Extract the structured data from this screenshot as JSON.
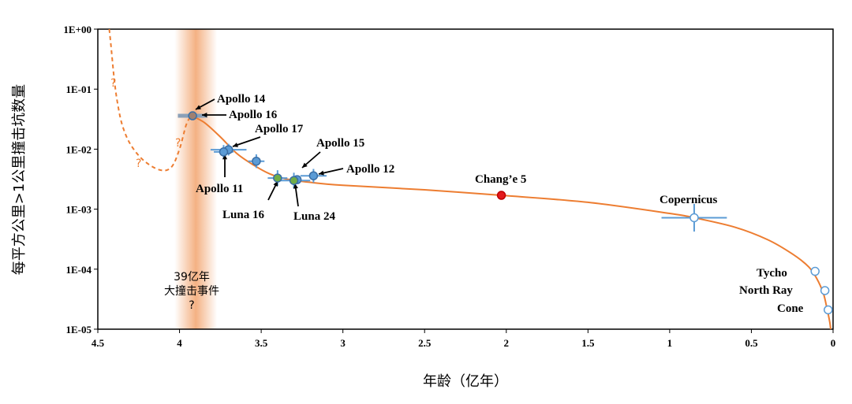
{
  "chart_data": {
    "type": "scatter",
    "title": "",
    "xlabel": "年龄（亿年）",
    "ylabel": "每平方公里>1公里撞击坑数量",
    "x_reversed": true,
    "x_range": [
      4.5,
      0
    ],
    "y_scale": "log",
    "y_range": [
      1e-05,
      1
    ],
    "x_ticks": [
      "4.5",
      "4",
      "3.5",
      "3",
      "2.5",
      "2",
      "1.5",
      "1",
      "0.5",
      "0"
    ],
    "y_ticks": [
      "1E+00",
      "1E-01",
      "1E-02",
      "1E-03",
      "1E-04",
      "1E-05"
    ],
    "grid": false,
    "colors": {
      "curve": "#ed7d31",
      "errorbar": "#5b9bd5",
      "band": "#f4b183"
    },
    "event_band": {
      "x_center": 3.9,
      "label_lines": [
        "39亿年",
        "大撞击事件",
        "?"
      ]
    },
    "curve_question_marks": [
      "?",
      "?",
      "?"
    ],
    "points": [
      {
        "label": "Apollo 14",
        "x": 3.92,
        "y": 0.036,
        "color": "#a08070"
      },
      {
        "label": "Apollo 16",
        "x": 3.92,
        "y": 0.036,
        "color": "#a08070"
      },
      {
        "label": "Apollo 17",
        "x": 3.7,
        "y": 0.0098,
        "color": "#5b9bd5"
      },
      {
        "label": "Apollo 11",
        "x": 3.73,
        "y": 0.009,
        "color": "#5b9bd5"
      },
      {
        "label": "Apollo 15",
        "x": 3.28,
        "y": 0.0031,
        "color": "#5b9bd5"
      },
      {
        "label": "Apollo 12",
        "x": 3.18,
        "y": 0.0036,
        "color": "#5b9bd5"
      },
      {
        "label": "",
        "x": 3.53,
        "y": 0.0063,
        "color": "#5b9bd5"
      },
      {
        "label": "Luna 16",
        "x": 3.4,
        "y": 0.0033,
        "color": "#70ad47"
      },
      {
        "label": "Luna 24",
        "x": 3.3,
        "y": 0.003,
        "color": "#70ad47"
      },
      {
        "label": "Chang’e 5",
        "x": 2.03,
        "y": 0.0017,
        "color": "#e31a1c"
      },
      {
        "label": "Copernicus",
        "x": 0.85,
        "y": 0.00072,
        "color": "#ffffff"
      },
      {
        "label": "Tycho",
        "x": 0.11,
        "y": 9.2e-05,
        "color": "#ffffff"
      },
      {
        "label": "North Ray",
        "x": 0.05,
        "y": 4.4e-05,
        "color": "#ffffff"
      },
      {
        "label": "Cone",
        "x": 0.03,
        "y": 2.1e-05,
        "color": "#ffffff"
      }
    ]
  }
}
